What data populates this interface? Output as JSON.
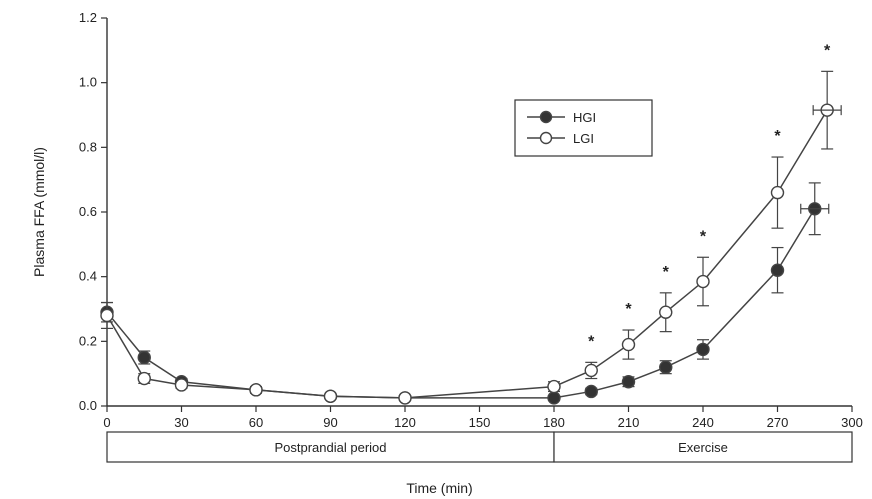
{
  "chart_data": {
    "type": "line",
    "title": "",
    "xlabel": "Time (min)",
    "ylabel": "Plasma FFA (mmol/l)",
    "xlim": [
      0,
      300
    ],
    "ylim": [
      0,
      1.2
    ],
    "xticks": [
      "0",
      "30",
      "60",
      "90",
      "120",
      "150",
      "180",
      "210",
      "240",
      "270",
      "300"
    ],
    "yticks": [
      "0.0",
      "0.2",
      "0.4",
      "0.6",
      "0.8",
      "1.0",
      "1.2"
    ],
    "grid": false,
    "legend_position": "top-right",
    "series": [
      {
        "name": "HGI",
        "marker": "filled-circle",
        "x": [
          0,
          15,
          30,
          60,
          90,
          120,
          180,
          195,
          210,
          225,
          240,
          270,
          285
        ],
        "y": [
          0.29,
          0.15,
          0.075,
          0.05,
          0.03,
          0.025,
          0.025,
          0.045,
          0.075,
          0.12,
          0.175,
          0.42,
          0.61
        ],
        "err": [
          0.03,
          0.02,
          0.01,
          0.01,
          0.005,
          0.005,
          0.005,
          0.01,
          0.015,
          0.02,
          0.03,
          0.07,
          0.08
        ]
      },
      {
        "name": "LGI",
        "marker": "open-circle",
        "x": [
          0,
          15,
          30,
          60,
          90,
          120,
          180,
          195,
          210,
          225,
          240,
          270,
          290
        ],
        "y": [
          0.28,
          0.085,
          0.065,
          0.05,
          0.03,
          0.025,
          0.06,
          0.11,
          0.19,
          0.29,
          0.385,
          0.66,
          0.915
        ],
        "err": [
          0.04,
          0.015,
          0.01,
          0.01,
          0.005,
          0.005,
          0.015,
          0.025,
          0.045,
          0.06,
          0.075,
          0.11,
          0.12
        ]
      }
    ],
    "significance_x": [
      195,
      210,
      225,
      240,
      270,
      290
    ],
    "significance_mark": "*",
    "periods": [
      {
        "label": "Postprandial period",
        "from": 0,
        "to": 180
      },
      {
        "label": "Exercise",
        "from": 180,
        "to": 300
      }
    ],
    "colors": {
      "axis": "#333333",
      "line": "#444444",
      "fill": "#333333",
      "open_fill": "#ffffff"
    }
  }
}
